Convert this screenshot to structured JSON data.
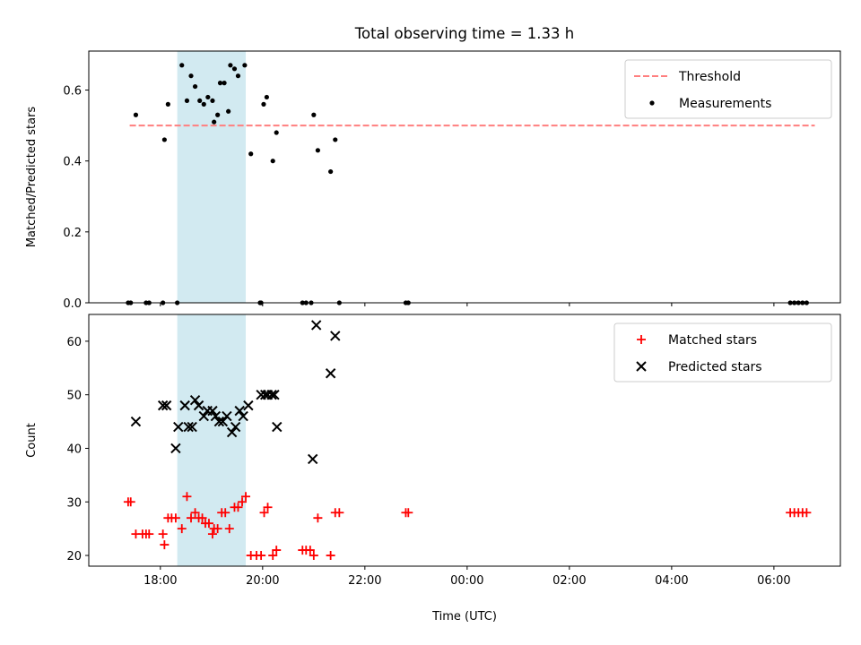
{
  "figure": {
    "title": "Total observing time = 1.33 h",
    "xlabel": "Time (UTC)",
    "x_ticks": [
      "18:00",
      "20:00",
      "22:00",
      "00:00",
      "02:00",
      "04:00",
      "06:00"
    ],
    "x_tick_hours": [
      18,
      20,
      22,
      24,
      26,
      28,
      30
    ],
    "x_range_hours": [
      16.6,
      31.3
    ],
    "highlight_span_hours": [
      18.33,
      19.67
    ],
    "colors": {
      "highlight": "#add8e6",
      "threshold": "#ff7f7f",
      "measurements": "#000000",
      "matched": "#ff0000",
      "predicted": "#000000"
    }
  },
  "chart_data": [
    {
      "type": "scatter",
      "ylabel": "Matched/Predicted stars",
      "ylim": [
        0,
        0.71
      ],
      "y_ticks": [
        "0.0",
        "0.2",
        "0.4",
        "0.6"
      ],
      "y_tick_values": [
        0,
        0.2,
        0.4,
        0.6
      ],
      "legend": {
        "placement": "top-right",
        "entries": [
          "Threshold",
          "Measurements"
        ]
      },
      "threshold": {
        "name": "Threshold",
        "value": 0.5,
        "x_start": 17.4,
        "x_end": 30.8,
        "style": "dashed"
      },
      "series": [
        {
          "name": "Measurements",
          "x": [
            17.37,
            17.42,
            17.52,
            17.72,
            17.78,
            18.05,
            18.08,
            18.15,
            18.33,
            18.42,
            18.52,
            18.6,
            18.68,
            18.77,
            18.85,
            18.93,
            19.02,
            19.05,
            19.12,
            19.17,
            19.25,
            19.33,
            19.37,
            19.45,
            19.52,
            19.65,
            19.77,
            19.95,
            19.97,
            20.02,
            20.08,
            20.2,
            20.27,
            20.78,
            20.85,
            20.95,
            21.0,
            21.08,
            21.33,
            21.42,
            21.5,
            22.8,
            22.85,
            30.32,
            30.4,
            30.48,
            30.56,
            30.64
          ],
          "y": [
            0,
            0,
            0.53,
            0,
            0,
            0,
            0.46,
            0.56,
            0,
            0.67,
            0.57,
            0.64,
            0.61,
            0.57,
            0.56,
            0.58,
            0.57,
            0.51,
            0.53,
            0.62,
            0.62,
            0.54,
            0.67,
            0.66,
            0.64,
            0.67,
            0.42,
            0,
            0,
            0.56,
            0.58,
            0.4,
            0.48,
            0,
            0,
            0,
            0.53,
            0.43,
            0.37,
            0.46,
            0,
            0,
            0,
            0,
            0,
            0,
            0,
            0
          ]
        }
      ]
    },
    {
      "type": "scatter",
      "ylabel": "Count",
      "ylim": [
        18,
        65
      ],
      "y_ticks": [
        "20",
        "30",
        "40",
        "50",
        "60"
      ],
      "y_tick_values": [
        20,
        30,
        40,
        50,
        60
      ],
      "legend": {
        "placement": "top-right",
        "entries": [
          "Matched stars",
          "Predicted stars"
        ]
      },
      "series": [
        {
          "name": "Matched stars",
          "marker": "plus",
          "x": [
            17.37,
            17.42,
            17.52,
            17.65,
            17.72,
            17.78,
            18.05,
            18.08,
            18.15,
            18.22,
            18.3,
            18.42,
            18.52,
            18.6,
            18.68,
            18.75,
            18.82,
            18.88,
            18.95,
            19.02,
            19.05,
            19.12,
            19.2,
            19.27,
            19.35,
            19.45,
            19.52,
            19.6,
            19.67,
            19.77,
            19.88,
            19.97,
            20.03,
            20.1,
            20.2,
            20.27,
            20.78,
            20.85,
            20.93,
            21.0,
            21.08,
            21.33,
            21.42,
            21.5,
            22.8,
            22.85,
            30.32,
            30.4,
            30.48,
            30.56,
            30.64
          ],
          "y": [
            30,
            30,
            24,
            24,
            24,
            24,
            24,
            22,
            27,
            27,
            27,
            25,
            31,
            27,
            28,
            27,
            27,
            26,
            26,
            24,
            25,
            25,
            28,
            28,
            25,
            29,
            29,
            30,
            31,
            20,
            20,
            20,
            28,
            29,
            20,
            21,
            21,
            21,
            21,
            20,
            27,
            20,
            28,
            28,
            28,
            28,
            28,
            28,
            28,
            28,
            28
          ]
        },
        {
          "name": "Predicted stars",
          "marker": "x",
          "x": [
            17.52,
            18.05,
            18.12,
            18.3,
            18.35,
            18.48,
            18.55,
            18.62,
            18.68,
            18.75,
            18.85,
            18.92,
            19.02,
            19.08,
            19.15,
            19.22,
            19.3,
            19.4,
            19.47,
            19.55,
            19.62,
            19.72,
            19.97,
            20.05,
            20.1,
            20.18,
            20.23,
            20.28,
            20.98,
            21.05,
            21.33,
            21.42
          ],
          "y": [
            45,
            48,
            48,
            40,
            44,
            48,
            44,
            44,
            49,
            48,
            46,
            47,
            47,
            46,
            45,
            45,
            46,
            43,
            44,
            47,
            46,
            48,
            50,
            50,
            50,
            50,
            50,
            44,
            38,
            63,
            54,
            61
          ]
        }
      ]
    }
  ]
}
